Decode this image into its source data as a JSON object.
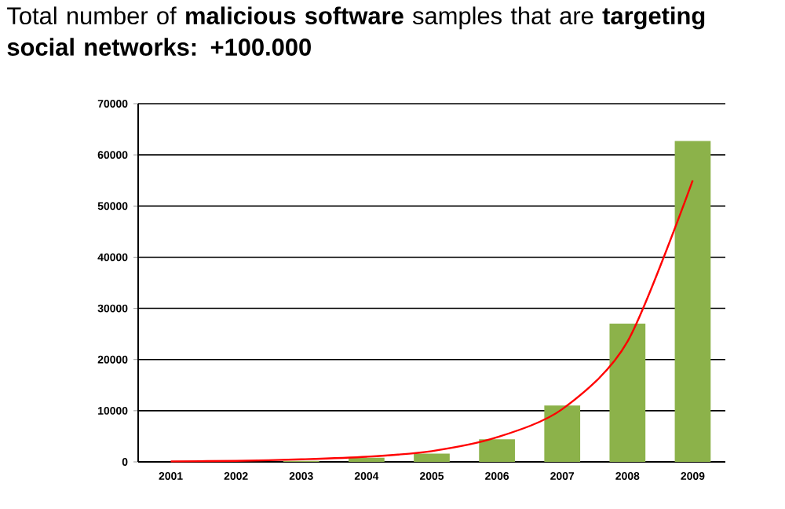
{
  "chart_data": {
    "type": "bar",
    "title": "Total number of **malicious software** samples that are **targeting social networks: +100.000**",
    "categories": [
      "2001",
      "2002",
      "2003",
      "2004",
      "2005",
      "2006",
      "2007",
      "2008",
      "2009"
    ],
    "series": [
      {
        "color": "#8cb24a",
        "values": [
          null,
          null,
          200,
          800,
          1600,
          4400,
          11000,
          27000,
          62700
        ]
      },
      {
        "type": "line",
        "color": "#ff0000",
        "values": [
          100,
          200,
          500,
          1000,
          2100,
          4800,
          10300,
          23500,
          55000
        ]
      }
    ],
    "ylim": [
      0,
      70000
    ],
    "yticks": [
      0,
      10000,
      20000,
      30000,
      40000,
      50000,
      60000,
      70000
    ],
    "grid": "y"
  }
}
